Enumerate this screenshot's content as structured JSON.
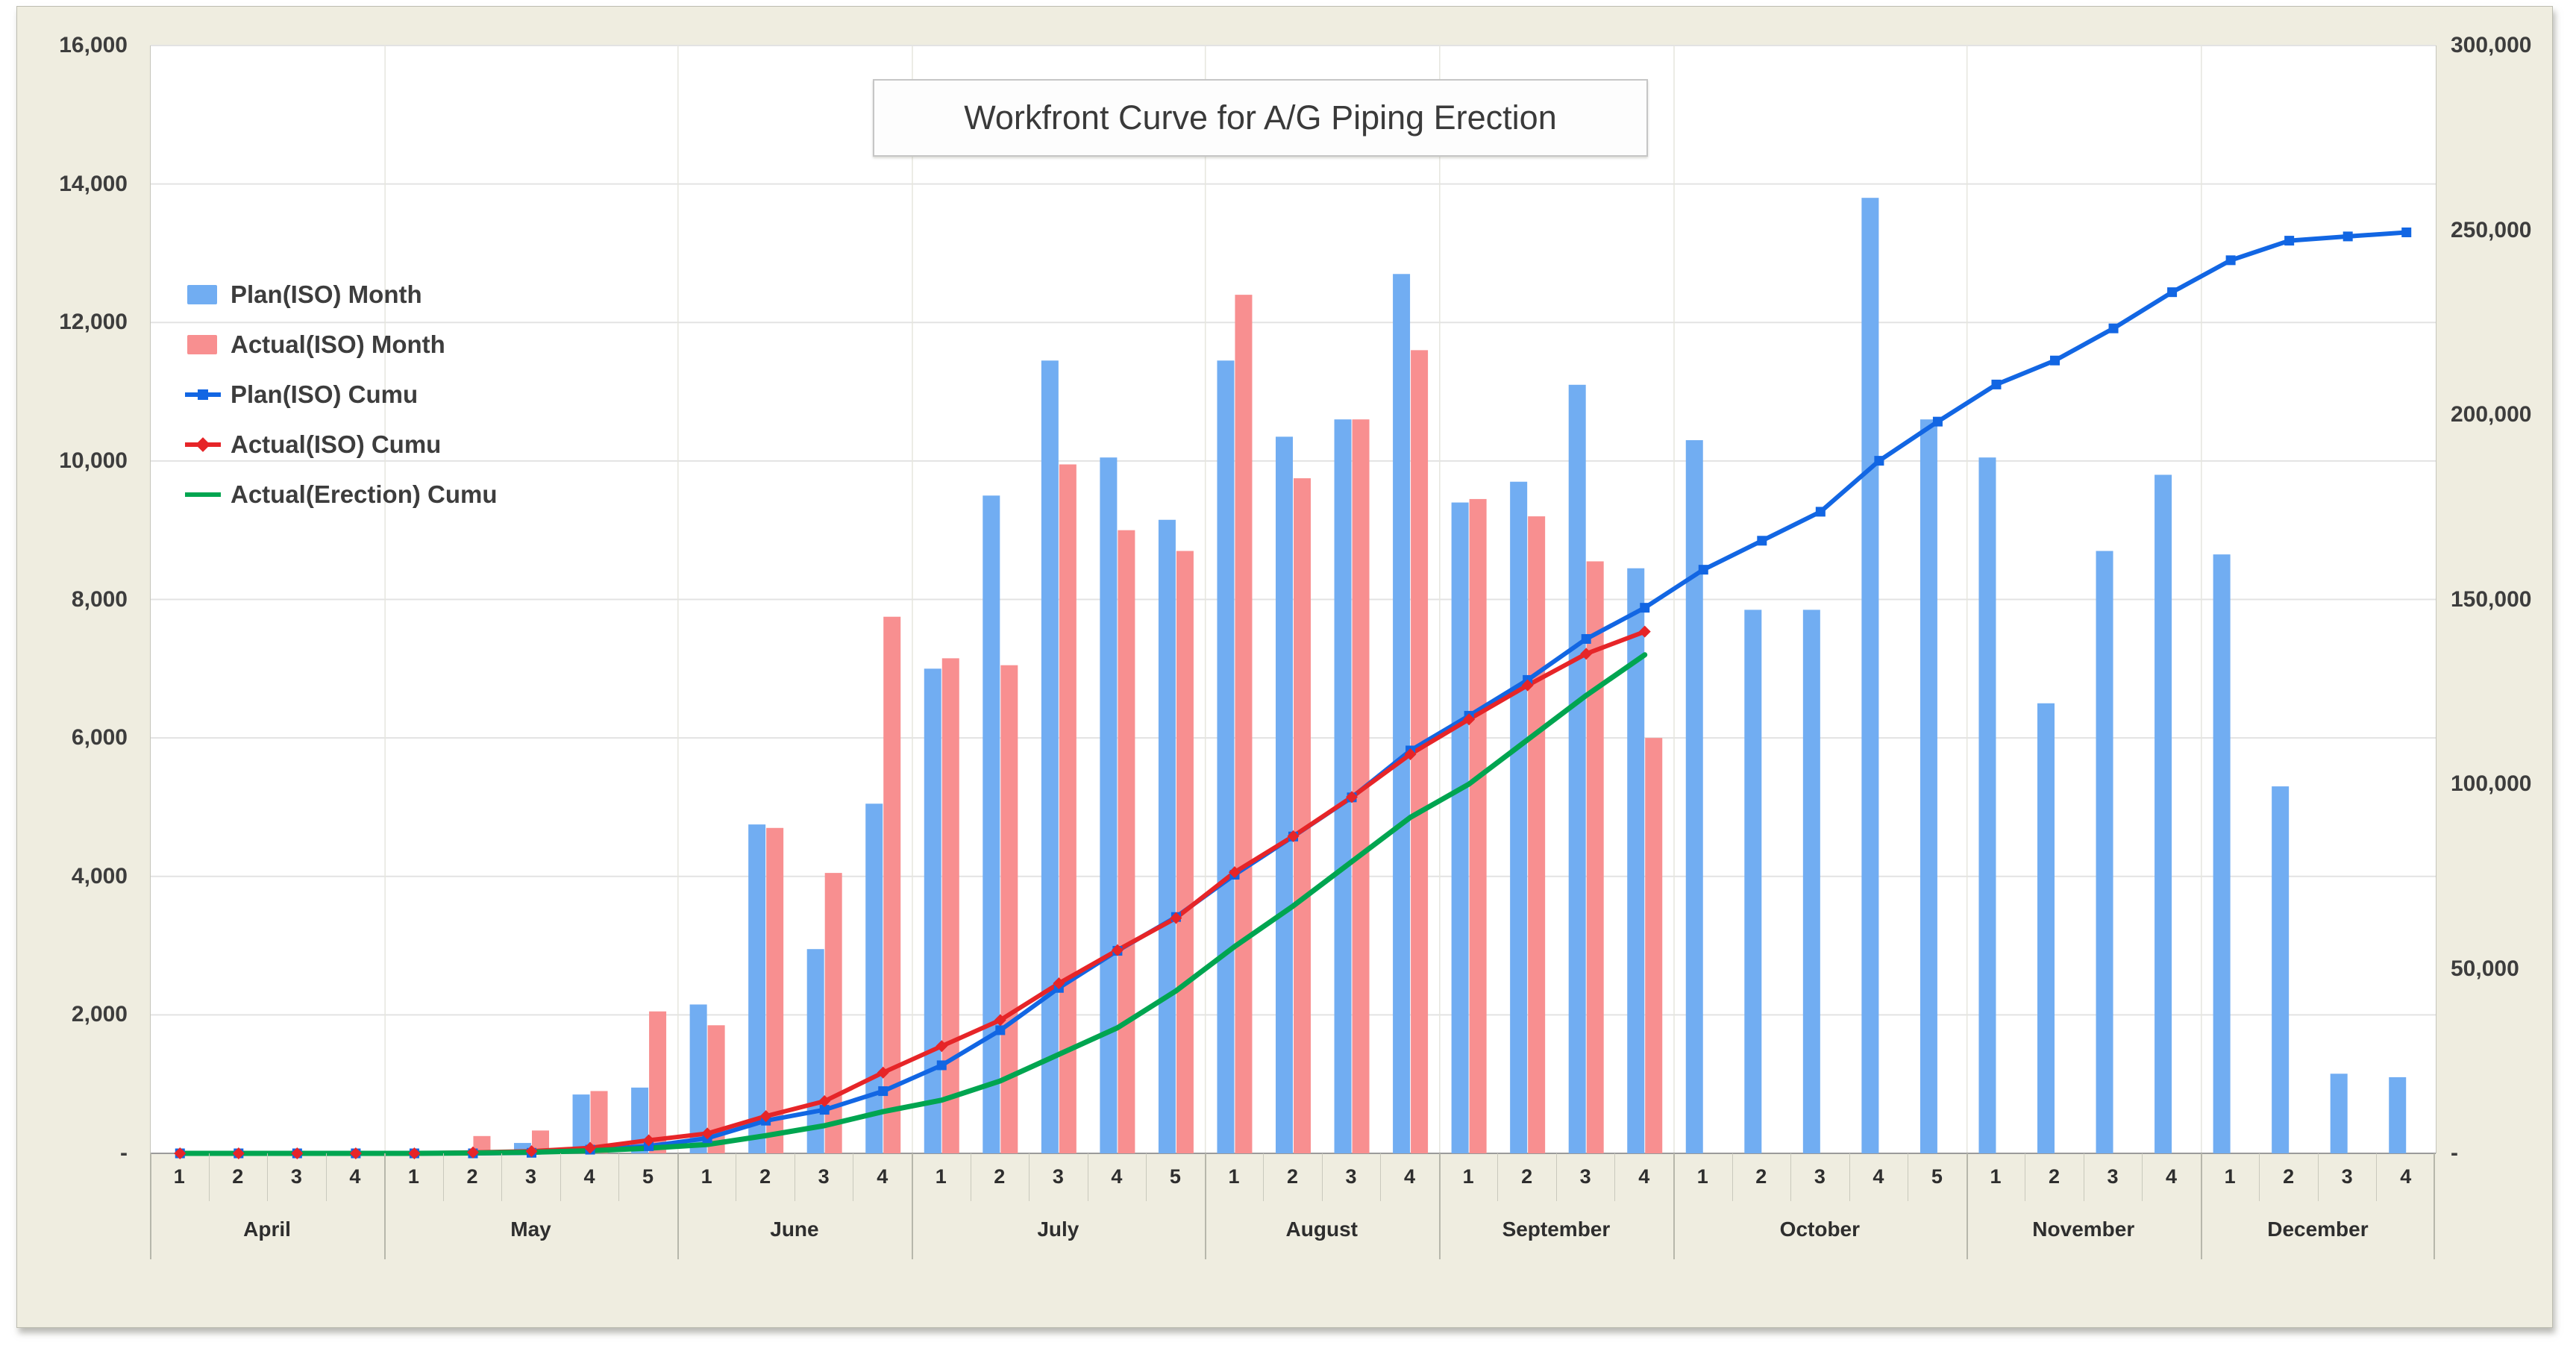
{
  "chart": {
    "title": "Workfront Curve for A/G Piping Erection",
    "background": "#EFEDE0",
    "plot_background": "#FFFFFF",
    "gridline_color": "#E3E3E3",
    "baseline_color": "#9B9B9B",
    "month_gridline_color": "#E6E6DE",
    "axis_text_color": "#3D3D3D"
  },
  "legend": {
    "items": [
      {
        "label": "Plan(ISO) Month",
        "swatch": "bar",
        "series": 0
      },
      {
        "label": "Actual(ISO) Month",
        "swatch": "bar",
        "series": 1
      },
      {
        "label": "Plan(ISO) Cumu",
        "swatch": "line-square",
        "series": 2
      },
      {
        "label": "Actual(ISO) Cumu",
        "swatch": "line-diamond",
        "series": 3
      },
      {
        "label": "Actual(Erection) Cumu",
        "swatch": "line",
        "series": 4
      }
    ]
  },
  "left_axis": {
    "tick_labels": [
      "16,000",
      "14,000",
      "12,000",
      "10,000",
      "8,000",
      "6,000",
      "4,000",
      "2,000",
      "-"
    ]
  },
  "right_axis": {
    "tick_labels": [
      "300,000",
      "250,000",
      "200,000",
      "150,000",
      "100,000",
      "50,000",
      "-"
    ]
  },
  "x_axis": {
    "months": [
      {
        "name": "April",
        "weeks": [
          "1",
          "2",
          "3",
          "4"
        ]
      },
      {
        "name": "May",
        "weeks": [
          "1",
          "2",
          "3",
          "4",
          "5"
        ]
      },
      {
        "name": "June",
        "weeks": [
          "1",
          "2",
          "3",
          "4"
        ]
      },
      {
        "name": "July",
        "weeks": [
          "1",
          "2",
          "3",
          "4",
          "5"
        ]
      },
      {
        "name": "August",
        "weeks": [
          "1",
          "2",
          "3",
          "4"
        ]
      },
      {
        "name": "September",
        "weeks": [
          "1",
          "2",
          "3",
          "4"
        ]
      },
      {
        "name": "October",
        "weeks": [
          "1",
          "2",
          "3",
          "4",
          "5"
        ]
      },
      {
        "name": "November",
        "weeks": [
          "1",
          "2",
          "3",
          "4"
        ]
      },
      {
        "name": "December",
        "weeks": [
          "1",
          "2",
          "3",
          "4"
        ]
      }
    ]
  },
  "chart_data": {
    "type": "bar",
    "subtype": "bar-line-combo",
    "title": "Workfront Curve for A/G Piping Erection",
    "left_axis_range": [
      0,
      16000
    ],
    "right_axis_range": [
      0,
      300000
    ],
    "grid": "horizontal",
    "legend_position": "top-left-inside",
    "categories": [
      "Apr-1",
      "Apr-2",
      "Apr-3",
      "Apr-4",
      "May-1",
      "May-2",
      "May-3",
      "May-4",
      "May-5",
      "Jun-1",
      "Jun-2",
      "Jun-3",
      "Jun-4",
      "Jul-1",
      "Jul-2",
      "Jul-3",
      "Jul-4",
      "Jul-5",
      "Aug-1",
      "Aug-2",
      "Aug-3",
      "Aug-4",
      "Sep-1",
      "Sep-2",
      "Sep-3",
      "Sep-4",
      "Oct-1",
      "Oct-2",
      "Oct-3",
      "Oct-4",
      "Oct-5",
      "Nov-1",
      "Nov-2",
      "Nov-3",
      "Nov-4",
      "Dec-1",
      "Dec-2",
      "Dec-3",
      "Dec-4"
    ],
    "series": [
      {
        "name": "Plan(ISO) Month",
        "type": "bar",
        "axis": "left",
        "color": "#71ADF2",
        "values": [
          0,
          0,
          0,
          0,
          0,
          0,
          150,
          850,
          950,
          2150,
          4750,
          2950,
          5050,
          7000,
          9500,
          11450,
          10050,
          9150,
          11450,
          10350,
          10600,
          12700,
          9400,
          9700,
          11100,
          8450,
          10300,
          7850,
          7850,
          13800,
          10600,
          10050,
          6500,
          8700,
          9800,
          8650,
          5300,
          1150,
          1100
        ]
      },
      {
        "name": "Actual(ISO) Month",
        "type": "bar",
        "axis": "left",
        "color": "#F88F90",
        "values": [
          0,
          0,
          0,
          0,
          0,
          250,
          330,
          900,
          2050,
          1850,
          4700,
          4050,
          7750,
          7150,
          7050,
          9950,
          9000,
          8700,
          12400,
          9750,
          10600,
          11600,
          9450,
          9200,
          8550,
          6000
        ]
      },
      {
        "name": "Plan(ISO) Cumu",
        "type": "line",
        "marker": "square",
        "axis": "right",
        "color": "#1266E3",
        "values": [
          0,
          0,
          0,
          0,
          0,
          0,
          150,
          1000,
          1950,
          4100,
          8850,
          11800,
          16850,
          23850,
          33350,
          44800,
          54850,
          64000,
          75450,
          85800,
          96400,
          109100,
          118500,
          128200,
          139300,
          147750,
          158050,
          165900,
          173750,
          187550,
          198150,
          208200,
          214700,
          223400,
          233200,
          241850,
          247150,
          248300,
          249400
        ]
      },
      {
        "name": "Actual(ISO) Cumu",
        "type": "line",
        "marker": "diamond",
        "axis": "right",
        "color": "#E62528",
        "values": [
          0,
          0,
          0,
          0,
          0,
          250,
          580,
          1480,
          3530,
          5380,
          10080,
          14130,
          21880,
          29030,
          36080,
          46030,
          55030,
          63730,
          76130,
          85880,
          96480,
          108080,
          117530,
          126730,
          135280,
          141280
        ]
      },
      {
        "name": "Actual(Erection) Cumu",
        "type": "line",
        "marker": "none",
        "axis": "right",
        "color": "#00A550",
        "values": [
          0,
          0,
          0,
          0,
          0,
          100,
          300,
          700,
          1400,
          2400,
          4800,
          7500,
          11300,
          14400,
          19600,
          26800,
          34000,
          44000,
          56000,
          67000,
          79000,
          91000,
          100000,
          112000,
          124000,
          135000
        ]
      }
    ]
  }
}
